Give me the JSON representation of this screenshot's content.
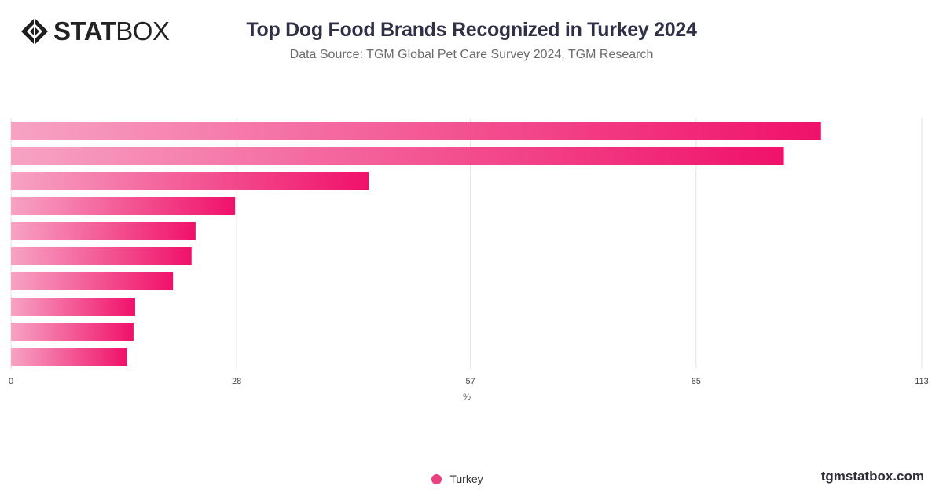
{
  "brand": {
    "logo_bold": "STAT",
    "logo_light": "BOX",
    "logo_icon": "diamond-logo-icon"
  },
  "header": {
    "title": "Top Dog Food Brands Recognized in Turkey 2024",
    "subtitle": "Data Source: TGM Global Pet Care Survey 2024, TGM Research"
  },
  "footer": {
    "site": "tgmstatbox.com"
  },
  "colors": {
    "bar_start": "#f7a3c3",
    "bar_end": "#f0116a",
    "legend_marker": "#ea3f80",
    "grid": "#e2e2e2"
  },
  "chart_data": {
    "type": "bar",
    "orientation": "horizontal",
    "title": "Top Dog Food Brands Recognized in Turkey 2024",
    "xlabel": "%",
    "ylabel": "",
    "xlim": [
      0,
      113
    ],
    "x_ticks": [
      "0",
      "28",
      "57",
      "85",
      "113"
    ],
    "tick_values": [
      0,
      28,
      57,
      85,
      113
    ],
    "grid": true,
    "legend_position": "bottom",
    "series": [
      {
        "name": "Turkey",
        "values": [
          100.5,
          95.9,
          44.4,
          27.8,
          22.9,
          22.4,
          20.1,
          15.4,
          15.2,
          14.4
        ]
      }
    ]
  }
}
